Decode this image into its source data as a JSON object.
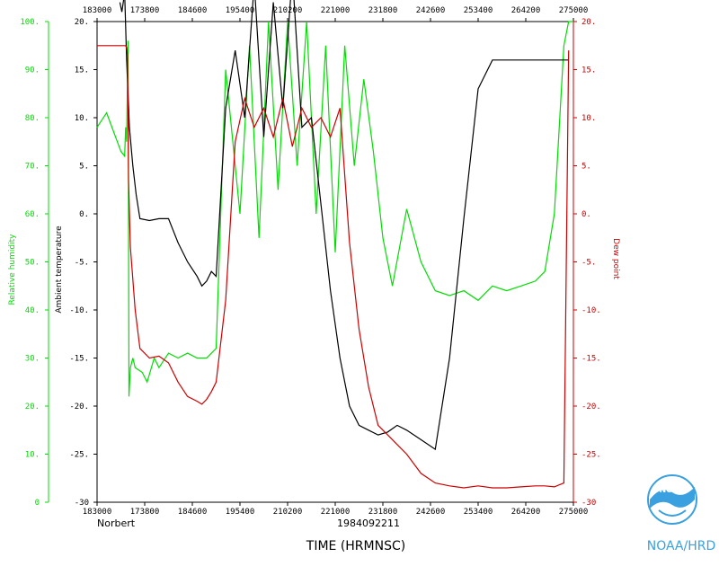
{
  "chart_data": {
    "type": "line",
    "storm_name": "Norbert",
    "date_id": "1984092211",
    "xlabel": "TIME (HRMNSC)",
    "credit": "NOAA/HRD",
    "logo_text": "NOAA",
    "x_ticks": [
      "183000",
      "173800",
      "184600",
      "195400",
      "210200",
      "221000",
      "231800",
      "242600",
      "253400",
      "264200",
      "275000"
    ],
    "x_ticks_top": [
      "183000",
      "173800",
      "184600",
      "195400",
      "210200",
      "221000",
      "231800",
      "242600",
      "253400",
      "264200",
      "275000"
    ],
    "left_rh_axis": {
      "label": "Relative humidity",
      "range": [
        0,
        100
      ],
      "ticks": [
        "0",
        "10.",
        "20.",
        "30.",
        "40.",
        "50.",
        "60.",
        "70.",
        "80.",
        "90.",
        "100."
      ],
      "color": "#00dd00"
    },
    "left_t_axis": {
      "label": "Ambient temperature",
      "range": [
        -30,
        20
      ],
      "ticks": [
        "-30",
        "-25.",
        "-20.",
        "-15.",
        "-10.",
        "-5.",
        "0.",
        "5.",
        "10.",
        "15.",
        "20."
      ],
      "color": "#000000"
    },
    "right_td_axis": {
      "label": "Dew point",
      "range": [
        -30,
        20
      ],
      "ticks": [
        "-30",
        "-25.",
        "-20.",
        "-15.",
        "-10.",
        "-5.",
        "0.",
        "5.",
        "10.",
        "15.",
        "20."
      ],
      "color": "#cc0000"
    },
    "series": [
      {
        "name": "Relative humidity",
        "color": "#00dd00",
        "axis": "rh",
        "x": [
          0,
          0.2,
          0.5,
          0.58,
          0.6,
          0.62,
          0.65,
          0.66,
          0.67,
          0.7,
          0.75,
          0.8,
          0.95,
          1.05,
          1.2,
          1.3,
          1.5,
          1.7,
          1.9,
          2.1,
          2.3,
          2.5,
          2.7,
          3.0,
          3.2,
          3.4,
          3.6,
          3.8,
          4.0,
          4.2,
          4.4,
          4.6,
          4.8,
          5.0,
          5.2,
          5.4,
          5.6,
          5.8,
          6.0,
          6.2,
          6.5,
          6.8,
          7.1,
          7.4,
          7.7,
          8.0,
          8.3,
          8.6,
          8.9,
          9.2,
          9.4,
          9.6,
          9.8,
          9.9,
          10.0
        ],
        "y": [
          78,
          81,
          73,
          72,
          78,
          75,
          96,
          62,
          22,
          28,
          30,
          28,
          27,
          25,
          30,
          28,
          31,
          30,
          31,
          30,
          30,
          32,
          90,
          60,
          95,
          55,
          100,
          65,
          100,
          70,
          100,
          60,
          95,
          52,
          95,
          70,
          88,
          73,
          55,
          45,
          61,
          50,
          44,
          43,
          44,
          42,
          45,
          44,
          45,
          46,
          48,
          60,
          95,
          100,
          100
        ]
      },
      {
        "name": "Ambient temperature",
        "color": "#000000",
        "axis": "t",
        "x": [
          0.48,
          0.52,
          0.58,
          0.62,
          0.68,
          0.75,
          0.82,
          0.9,
          1.1,
          1.3,
          1.5,
          1.7,
          1.9,
          2.1,
          2.2,
          2.3,
          2.4,
          2.5,
          2.7,
          2.9,
          3.1,
          3.3,
          3.5,
          3.7,
          3.9,
          4.1,
          4.3,
          4.5,
          4.7,
          4.9,
          5.1,
          5.3,
          5.5,
          5.7,
          5.9,
          6.1,
          6.3,
          6.5,
          6.8,
          7.1,
          7.4,
          7.7,
          8.0,
          8.3,
          8.6,
          8.9,
          9.2,
          9.4,
          9.6,
          9.8,
          9.9
        ],
        "y": [
          22,
          21,
          23,
          16,
          9,
          5,
          2,
          -0.5,
          -0.7,
          -0.5,
          -0.5,
          -3,
          -5,
          -6.5,
          -7.5,
          -7,
          -6,
          -6.5,
          11,
          17,
          10,
          24,
          8,
          22,
          11,
          25,
          9,
          10,
          1,
          -8,
          -15,
          -20,
          -22,
          -22.5,
          -23,
          -22.7,
          -22,
          -22.5,
          -23.5,
          -24.5,
          -15,
          -0.5,
          13,
          16,
          16,
          16,
          16,
          16,
          16,
          16,
          16
        ]
      },
      {
        "name": "Dew point",
        "color": "#cc0000",
        "axis": "td",
        "x": [
          0,
          0.2,
          0.4,
          0.55,
          0.6,
          0.62,
          0.64,
          0.66,
          0.7,
          0.8,
          0.9,
          1.1,
          1.3,
          1.5,
          1.7,
          1.9,
          2.1,
          2.2,
          2.3,
          2.4,
          2.5,
          2.7,
          2.9,
          3.1,
          3.3,
          3.5,
          3.7,
          3.9,
          4.1,
          4.3,
          4.5,
          4.7,
          4.9,
          5.1,
          5.3,
          5.5,
          5.7,
          5.9,
          6.1,
          6.3,
          6.5,
          6.8,
          7.1,
          7.4,
          7.7,
          8.0,
          8.3,
          8.6,
          8.9,
          9.2,
          9.4,
          9.6,
          9.8,
          9.9
        ],
        "y": [
          17.5,
          17.5,
          17.5,
          17.5,
          17.5,
          17.3,
          16.5,
          3.5,
          -3.5,
          -10,
          -14,
          -15,
          -14.8,
          -15.5,
          -17.5,
          -19,
          -19.5,
          -19.8,
          -19.3,
          -18.5,
          -17.5,
          -9,
          7.5,
          12,
          9,
          11,
          8,
          12,
          7,
          11,
          9,
          10,
          8,
          11,
          -3,
          -12,
          -18,
          -22,
          -23,
          -24,
          -25,
          -27,
          -28,
          -28.3,
          -28.5,
          -28.3,
          -28.5,
          -28.5,
          -28.4,
          -28.3,
          -28.3,
          -28.4,
          -28,
          17
        ]
      }
    ]
  }
}
